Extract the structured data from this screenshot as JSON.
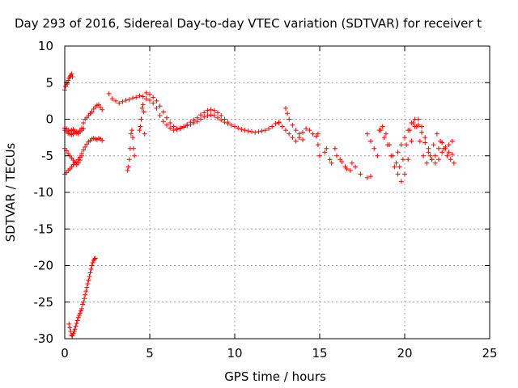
{
  "chart_data": {
    "type": "scatter",
    "title": "Day 293 of 2016, Sidereal Day-to-day VTEC variation (SDTVAR) for receiver t",
    "xlabel": "GPS time / hours",
    "ylabel": "SDTVAR / TECUs",
    "xlim": [
      0,
      25
    ],
    "ylim": [
      -30,
      10
    ],
    "xticks": [
      0,
      5,
      10,
      15,
      20,
      25
    ],
    "yticks": [
      -30,
      -25,
      -20,
      -15,
      -10,
      -5,
      0,
      5,
      10
    ],
    "grid": true,
    "marker": "+",
    "color": "#ff0000",
    "series": [
      {
        "name": "low-trace",
        "x": [
          0.25,
          0.3,
          0.35,
          0.4,
          0.45,
          0.5,
          0.55,
          0.6,
          0.65,
          0.7,
          0.75,
          0.8,
          0.85,
          0.9,
          0.95,
          1.0,
          1.05,
          1.1,
          1.15,
          1.2,
          1.25,
          1.3,
          1.35,
          1.4,
          1.45,
          1.5,
          1.55,
          1.6,
          1.65,
          1.7,
          1.75,
          1.8
        ],
        "y": [
          -28,
          -28.5,
          -29,
          -29.5,
          -29.6,
          -29.3,
          -29,
          -28.7,
          -28.3,
          -27.9,
          -27.5,
          -27.1,
          -26.8,
          -26.5,
          -26.2,
          -25.9,
          -25.3,
          -25,
          -24.5,
          -24,
          -23.5,
          -23,
          -22.5,
          -22,
          -21.5,
          -21,
          -20.5,
          -20,
          -19.6,
          -19.3,
          -19.1,
          -19
        ]
      },
      {
        "name": "early-upper",
        "x": [
          0.0,
          0.05,
          0.1,
          0.15,
          0.2,
          0.25,
          0.3,
          0.35,
          0.4,
          0.45
        ],
        "y": [
          4.0,
          4.5,
          5.0,
          4.8,
          5.3,
          5.6,
          5.8,
          6.0,
          6.2,
          5.8
        ]
      },
      {
        "name": "band-a",
        "x": [
          0,
          0.1,
          0.2,
          0.3,
          0.4,
          0.5,
          0.6,
          0.7,
          0.8,
          0.9,
          1.0,
          1.1,
          1.2,
          1.3,
          1.4,
          1.5,
          1.6,
          1.7,
          1.8,
          1.9,
          2.0,
          2.1,
          2.2
        ],
        "y": [
          -1.2,
          -1.3,
          -1.5,
          -1.6,
          -1.5,
          -1.4,
          -1.6,
          -1.7,
          -1.8,
          -1.5,
          -1.2,
          -0.5,
          0.0,
          0.2,
          0.5,
          0.8,
          1.0,
          1.4,
          1.7,
          1.9,
          2.0,
          1.6,
          1.3
        ]
      },
      {
        "name": "band-b",
        "x": [
          0,
          0.1,
          0.2,
          0.3,
          0.4,
          0.5,
          0.6,
          0.7,
          0.8,
          0.9,
          1.0,
          1.1,
          1.2,
          1.3,
          1.4,
          1.5,
          1.6,
          1.7,
          1.8,
          1.9,
          2.0,
          2.1,
          2.2
        ],
        "y": [
          -7.5,
          -7.3,
          -7.0,
          -6.8,
          -6.5,
          -6.2,
          -6.0,
          -5.8,
          -5.5,
          -5.2,
          -4.7,
          -4.2,
          -3.8,
          -3.4,
          -3.1,
          -2.9,
          -2.7,
          -2.6,
          -2.7,
          -2.8,
          -2.6,
          -2.7,
          -2.9
        ]
      },
      {
        "name": "band-c",
        "x": [
          0,
          0.1,
          0.2,
          0.3,
          0.4,
          0.5,
          0.6,
          0.7,
          0.8,
          0.9,
          1.0
        ],
        "y": [
          -4.0,
          -4.3,
          -4.7,
          -5.0,
          -5.3,
          -5.6,
          -5.9,
          -6.2,
          -6.0,
          -5.6,
          -5.0
        ]
      },
      {
        "name": "band-d",
        "x": [
          0,
          0.1,
          0.2,
          0.3,
          0.4,
          0.5,
          0.6,
          0.7,
          0.8,
          0.9,
          1.0,
          1.1
        ],
        "y": [
          -1.5,
          -1.7,
          -1.9,
          -2.0,
          -2.1,
          -2.0,
          -1.8,
          -1.9,
          -2.0,
          -1.7,
          -1.5,
          -1.3
        ]
      },
      {
        "name": "spike-4h",
        "x": [
          3.7,
          3.75,
          3.8,
          3.85,
          3.9,
          3.95,
          4.0,
          4.05,
          4.1
        ],
        "y": [
          -7.0,
          -6.5,
          -5.5,
          -4.0,
          -2.0,
          -1.5,
          -2.5,
          -4.0,
          -5.0
        ]
      },
      {
        "name": "spike-4.5h",
        "x": [
          4.4,
          4.45,
          4.5,
          4.55,
          4.6,
          4.65,
          4.7
        ],
        "y": [
          -1.5,
          -1.0,
          0.0,
          1.5,
          2.0,
          1.0,
          -2.0
        ]
      },
      {
        "name": "main-trace",
        "x": [
          2.6,
          2.8,
          3.0,
          3.2,
          3.4,
          3.6,
          3.8,
          4.0,
          4.2,
          4.4,
          4.6,
          4.8,
          5.0,
          5.2,
          5.4,
          5.6,
          5.8,
          6.0,
          6.2,
          6.4,
          6.6,
          6.8,
          7.0,
          7.2,
          7.4,
          7.6,
          7.8,
          8.0,
          8.2,
          8.4,
          8.6,
          8.8,
          9.0,
          9.2,
          9.4,
          9.6,
          9.8,
          10.0,
          10.2,
          10.4,
          10.6,
          10.8,
          11.0,
          11.2,
          11.4,
          11.6,
          11.8,
          12.0,
          12.2,
          12.4,
          12.6
        ],
        "y": [
          3.5,
          2.8,
          2.5,
          2.2,
          2.4,
          2.6,
          2.7,
          2.9,
          3.0,
          3.2,
          3.1,
          2.8,
          2.6,
          2.2,
          1.5,
          0.5,
          -0.3,
          -0.8,
          -1.2,
          -1.5,
          -1.4,
          -1.3,
          -1.1,
          -0.9,
          -0.7,
          -0.5,
          -0.3,
          0.0,
          0.3,
          0.5,
          0.6,
          0.5,
          0.2,
          -0.1,
          -0.4,
          -0.6,
          -0.8,
          -1.0,
          -1.2,
          -1.4,
          -1.5,
          -1.6,
          -1.7,
          -1.8,
          -1.7,
          -1.6,
          -1.5,
          -1.3,
          -1.0,
          -0.6,
          -0.4
        ]
      },
      {
        "name": "main-trace-b",
        "x": [
          4.8,
          5.0,
          5.2,
          5.4,
          5.6,
          5.8,
          6.0,
          6.2,
          6.4,
          6.6,
          6.8,
          7.0,
          7.2,
          7.4,
          7.6,
          7.8,
          8.0,
          8.2,
          8.4,
          8.6,
          8.8,
          9.0,
          9.2,
          9.4,
          9.6
        ],
        "y": [
          3.6,
          3.4,
          3.0,
          2.5,
          1.8,
          1.0,
          0.2,
          -0.5,
          -1.0,
          -1.3,
          -1.2,
          -1.0,
          -0.7,
          -0.4,
          -0.1,
          0.2,
          0.6,
          0.9,
          1.2,
          1.3,
          1.2,
          0.9,
          0.5,
          0.0,
          -0.4
        ]
      },
      {
        "name": "mid-cluster",
        "x": [
          12.6,
          12.8,
          13.0,
          13.2,
          13.4,
          13.6,
          13.8,
          14.0,
          14.2,
          14.4,
          14.6,
          14.8,
          14.9
        ],
        "y": [
          -0.5,
          -1.0,
          -1.5,
          -2.0,
          -2.5,
          -3.0,
          -2.5,
          -1.8,
          -1.3,
          -1.5,
          -2.0,
          -2.3,
          -2.0
        ]
      },
      {
        "name": "mid-cluster-b",
        "x": [
          13.0,
          13.1,
          13.2,
          13.4,
          13.6,
          13.8,
          14.0
        ],
        "y": [
          1.5,
          0.8,
          0.0,
          -0.8,
          -1.5,
          -2.0,
          -2.8
        ]
      },
      {
        "name": "sparse-mid",
        "x": [
          14.9,
          15.0,
          15.3,
          15.6,
          15.9,
          16.2,
          16.5,
          16.8,
          17.1,
          17.4,
          17.8,
          18.0
        ],
        "y": [
          -3.5,
          -5.0,
          -4.5,
          -5.5,
          -4.0,
          -5.5,
          -6.5,
          -7.0,
          -6.5,
          -7.5,
          -8.0,
          -7.8
        ]
      },
      {
        "name": "sparse-mid-b",
        "x": [
          15.4,
          15.7,
          16.0,
          16.3,
          16.6,
          16.9
        ],
        "y": [
          -4.0,
          -6.0,
          -5.0,
          -5.8,
          -6.8,
          -6.0
        ]
      },
      {
        "name": "late-a",
        "x": [
          17.8,
          18.0,
          18.2,
          18.4,
          18.6,
          18.8,
          19.0,
          19.2,
          19.4,
          19.6,
          19.8,
          20.0,
          20.2,
          20.4,
          20.6,
          20.8,
          21.0,
          21.2,
          21.4,
          21.6,
          21.8,
          22.0,
          22.2,
          22.4,
          22.6,
          22.8
        ],
        "y": [
          -2.0,
          -3.0,
          -4.0,
          -5.0,
          -1.5,
          -2.5,
          -3.5,
          -5.0,
          -6.5,
          -7.5,
          -8.5,
          -7.5,
          -5.5,
          -3.0,
          -1.0,
          0.0,
          -1.0,
          -2.5,
          -4.0,
          -5.5,
          -6.0,
          -5.5,
          -4.5,
          -4.0,
          -3.5,
          -3.0
        ]
      },
      {
        "name": "late-b",
        "x": [
          18.5,
          18.7,
          18.9,
          19.1,
          19.3,
          19.5,
          19.7,
          19.9,
          20.1,
          20.3,
          20.5,
          20.7,
          20.9,
          21.1,
          21.3,
          21.5,
          21.7,
          21.9,
          22.1,
          22.3,
          22.5,
          22.7,
          22.9
        ],
        "y": [
          -1.5,
          -1.0,
          -2.0,
          -3.5,
          -5.0,
          -6.0,
          -6.5,
          -5.5,
          -3.5,
          -1.5,
          -0.5,
          -1.0,
          -3.0,
          -5.0,
          -6.0,
          -5.0,
          -3.5,
          -2.0,
          -3.0,
          -4.0,
          -5.0,
          -5.5,
          -6.0
        ]
      },
      {
        "name": "late-c",
        "x": [
          19.6,
          19.8,
          20.0,
          20.2,
          20.4,
          20.6,
          20.8,
          21.0,
          21.2,
          21.4,
          21.6,
          21.8,
          22.0,
          22.2,
          22.4,
          22.6,
          22.8
        ],
        "y": [
          -4.5,
          -3.5,
          -2.5,
          -1.5,
          -0.5,
          0.0,
          -0.8,
          -1.8,
          -3.2,
          -4.5,
          -5.5,
          -5.0,
          -4.0,
          -3.2,
          -3.8,
          -4.5,
          -4.8
        ]
      }
    ]
  }
}
